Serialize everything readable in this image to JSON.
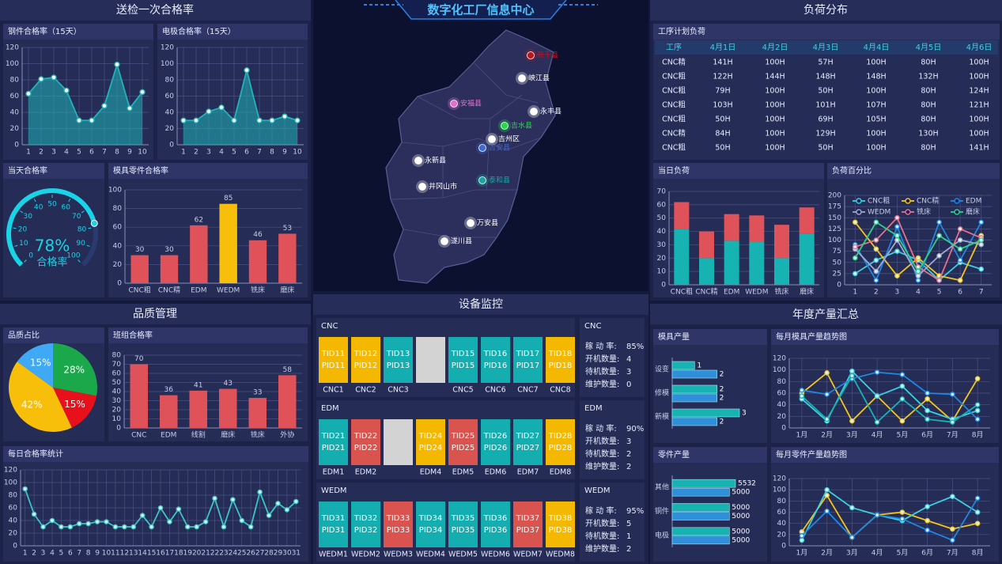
{
  "header": {
    "title": "数字化工厂信息中心"
  },
  "sections": [
    "送检一次合格率",
    "品质管理",
    "设备监控",
    "负荷分布",
    "年度产量汇总"
  ],
  "chart_data": [
    {
      "type": "line",
      "title": "钢件合格率（15天）",
      "categories": [
        "1",
        "2",
        "3",
        "4",
        "5",
        "6",
        "7",
        "8",
        "9",
        "10"
      ],
      "series": [
        {
          "color": "#1fb5b8",
          "values": [
            63,
            81,
            83,
            67,
            30,
            30,
            48,
            99,
            45,
            65
          ]
        }
      ],
      "area": true,
      "ylim": [
        0,
        120
      ],
      "yticks": [
        0,
        20,
        40,
        60,
        80,
        100,
        120
      ],
      "grid": true
    },
    {
      "type": "line",
      "title": "电极合格率（15天）",
      "categories": [
        "1",
        "2",
        "3",
        "4",
        "5",
        "6",
        "7",
        "8",
        "9",
        "10"
      ],
      "series": [
        {
          "color": "#1fb5b8",
          "values": [
            30,
            30,
            41,
            46,
            30,
            92,
            30,
            30,
            35,
            30
          ]
        }
      ],
      "area": true,
      "ylim": [
        0,
        120
      ],
      "yticks": [
        0,
        20,
        40,
        60,
        80,
        100,
        120
      ],
      "grid": true
    },
    {
      "type": "gauge",
      "title": "当天合格率",
      "values": [
        78
      ],
      "value_labels": [
        "78%"
      ],
      "label": "合格率",
      "color": "#19d3e6",
      "ylim": [
        0,
        100
      ],
      "yticks": [
        0,
        10,
        20,
        30,
        40,
        50,
        60,
        70,
        80,
        90,
        100
      ]
    },
    {
      "type": "bar",
      "title": "模具零件合格率",
      "categories": [
        "CNC粗",
        "CNC精",
        "EDM",
        "WEDM",
        "铣床",
        "磨床"
      ],
      "series": [
        {
          "color": "#e0525a",
          "colors": [
            "#e0525a",
            "#e0525a",
            "#e0525a",
            "#f7bf0a",
            "#e0525a",
            "#e0525a"
          ],
          "values": [
            30,
            30,
            62,
            85,
            46,
            53
          ]
        }
      ],
      "ylim": [
        0,
        100
      ],
      "yticks": [
        0,
        20,
        40,
        60,
        80,
        100
      ],
      "grid": true,
      "data_labels": true
    },
    {
      "type": "pie",
      "title": "品质占比",
      "values": [
        28,
        15,
        42,
        15
      ],
      "value_labels": [
        "28%",
        "15%",
        "42%",
        "15%"
      ],
      "colors": [
        "#1aa84b",
        "#e8101a",
        "#f7bf0a",
        "#3fa9f5"
      ]
    },
    {
      "type": "bar",
      "title": "班组合格率",
      "categories": [
        "CNC",
        "EDM",
        "线割",
        "磨床",
        "铣床",
        "外协"
      ],
      "series": [
        {
          "color": "#e0525a",
          "values": [
            70,
            36,
            41,
            43,
            33,
            58
          ]
        }
      ],
      "ylim": [
        0,
        80
      ],
      "yticks": [
        0,
        10,
        20,
        30,
        40,
        50,
        60,
        70,
        80
      ],
      "grid": true,
      "data_labels": true
    },
    {
      "type": "line",
      "title": "每日合格率统计",
      "categories": [
        "1",
        "2",
        "3",
        "4",
        "5",
        "6",
        "7",
        "8",
        "9",
        "10",
        "11",
        "12",
        "13",
        "14",
        "15",
        "16",
        "17",
        "18",
        "19",
        "20",
        "21",
        "22",
        "23",
        "24",
        "25",
        "26",
        "27",
        "28",
        "29",
        "30",
        "31"
      ],
      "series": [
        {
          "color": "#3bc6c6",
          "values": [
            90,
            50,
            30,
            40,
            30,
            30,
            35,
            35,
            38,
            38,
            30,
            30,
            30,
            48,
            30,
            60,
            38,
            58,
            30,
            30,
            38,
            75,
            30,
            73,
            40,
            30,
            85,
            48,
            67,
            57,
            70
          ]
        }
      ],
      "area": false,
      "ylim": [
        0,
        120
      ],
      "yticks": [
        0,
        20,
        40,
        60,
        80,
        100,
        120
      ],
      "grid": true
    },
    {
      "type": "bar",
      "title": "当日负荷",
      "stacked": true,
      "categories": [
        "CNC粗",
        "CNC精",
        "EDM",
        "WEDM",
        "铣床",
        "磨床"
      ],
      "series": [
        {
          "color": "#17b3b3",
          "values": [
            42,
            20,
            33,
            32,
            20,
            38
          ]
        },
        {
          "color": "#e0525a",
          "values": [
            20,
            20,
            20,
            20,
            25,
            20
          ]
        }
      ],
      "ylim": [
        0,
        70
      ],
      "yticks": [
        0,
        10,
        20,
        30,
        40,
        50,
        60,
        70
      ],
      "grid": true
    },
    {
      "type": "line",
      "title": "负荷百分比",
      "legend": true,
      "categories": [
        "1",
        "2",
        "3",
        "4",
        "5",
        "6",
        "7"
      ],
      "series": [
        {
          "name": "CNC粗",
          "color": "#3ad1e0",
          "values": [
            25,
            55,
            75,
            55,
            10,
            50,
            35
          ]
        },
        {
          "name": "CNC精",
          "color": "#f5c518",
          "values": [
            140,
            80,
            20,
            60,
            20,
            10,
            110
          ]
        },
        {
          "name": "EDM",
          "color": "#1e88e5",
          "values": [
            90,
            10,
            130,
            10,
            140,
            55,
            140
          ]
        },
        {
          "name": "WEDM",
          "color": "#a0a8d0",
          "values": [
            80,
            30,
            100,
            20,
            65,
            100,
            90
          ]
        },
        {
          "name": "铣床",
          "color": "#e8708a",
          "values": [
            85,
            100,
            150,
            40,
            10,
            125,
            105
          ]
        },
        {
          "name": "磨床",
          "color": "#2ed18a",
          "values": [
            60,
            140,
            110,
            30,
            110,
            80,
            100
          ]
        }
      ],
      "area": false,
      "ylim": [
        0,
        200
      ],
      "yticks": [
        0,
        25,
        50,
        75,
        100,
        125,
        150,
        175,
        200
      ],
      "grid": true
    },
    {
      "type": "hbar",
      "title": "模具产量",
      "categories": [
        "设变",
        "修模",
        "新模"
      ],
      "series": [
        {
          "color": "#17b3b3",
          "values": [
            1,
            2,
            3
          ]
        },
        {
          "color": "#2f8fd8",
          "values": [
            2,
            2,
            2
          ]
        }
      ],
      "data_labels": true
    },
    {
      "type": "line",
      "title": "每月模具产量趋势图",
      "categories": [
        "1月",
        "2月",
        "3月",
        "4月",
        "5月",
        "6月",
        "7月",
        "8月"
      ],
      "series": [
        {
          "color": "#f5c518",
          "values": [
            60,
            95,
            12,
            55,
            12,
            50,
            12,
            85
          ]
        },
        {
          "color": "#3ad1e0",
          "values": [
            50,
            12,
            98,
            55,
            72,
            30,
            15,
            30
          ]
        },
        {
          "color": "#1e88e5",
          "values": [
            65,
            58,
            85,
            96,
            92,
            60,
            58,
            15
          ]
        },
        {
          "color": "#17b3b3",
          "values": [
            55,
            15,
            90,
            10,
            50,
            15,
            10,
            40
          ]
        }
      ],
      "area": false,
      "ylim": [
        0,
        120
      ],
      "yticks": [
        0,
        20,
        40,
        60,
        80,
        100,
        120
      ],
      "grid": true
    },
    {
      "type": "hbar",
      "title": "零件产量",
      "categories": [
        "其他",
        "铜件",
        "电极"
      ],
      "series": [
        {
          "color": "#17b3b3",
          "values": [
            5532,
            5000,
            5000
          ]
        },
        {
          "color": "#2f8fd8",
          "values": [
            5000,
            5000,
            5000
          ]
        }
      ],
      "data_labels": true
    },
    {
      "type": "line",
      "title": "每月零件产量趋势图",
      "categories": [
        "1月",
        "2月",
        "3月",
        "4月",
        "5月",
        "6月",
        "7月",
        "8月"
      ],
      "series": [
        {
          "color": "#f5c518",
          "values": [
            25,
            90,
            15,
            55,
            60,
            45,
            30,
            40
          ]
        },
        {
          "color": "#3ad1e0",
          "values": [
            10,
            100,
            68,
            55,
            45,
            70,
            88,
            60
          ]
        },
        {
          "color": "#1e88e5",
          "values": [
            18,
            62,
            15,
            55,
            48,
            28,
            10,
            85
          ]
        }
      ],
      "area": false,
      "ylim": [
        0,
        120
      ],
      "yticks": [
        0,
        20,
        40,
        60,
        80,
        100,
        120
      ],
      "grid": true
    }
  ],
  "map": {
    "places": [
      {
        "name": "新干县",
        "color": "#c0141e"
      },
      {
        "name": "峡江县",
        "color": "#ffffff"
      },
      {
        "name": "安福县",
        "color": "#e070d0"
      },
      {
        "name": "永丰县",
        "color": "#ffffff"
      },
      {
        "name": "吉水县",
        "color": "#22dd44"
      },
      {
        "name": "吉州区",
        "color": "#ffffff"
      },
      {
        "name": "吉安县",
        "color": "#3d6bd8"
      },
      {
        "name": "永新县",
        "color": "#ffffff"
      },
      {
        "name": "泰和县",
        "color": "#17a7a0"
      },
      {
        "name": "井冈山市",
        "color": "#ffffff"
      },
      {
        "name": "万安县",
        "color": "#ffffff"
      },
      {
        "name": "遂川县",
        "color": "#ffffff"
      }
    ]
  },
  "load_table": {
    "title": "工序计划负荷",
    "header": [
      "工序",
      "4月1日",
      "4月2日",
      "4月3日",
      "4月4日",
      "4月5日",
      "4月6日"
    ],
    "rows": [
      [
        "CNC精",
        "141H",
        "100H",
        "57H",
        "100H",
        "80H",
        "100H"
      ],
      [
        "CNC粗",
        "122H",
        "144H",
        "148H",
        "148H",
        "132H",
        "100H"
      ],
      [
        "CNC粗",
        "79H",
        "100H",
        "50H",
        "100H",
        "80H",
        "124H"
      ],
      [
        "CNC粗",
        "103H",
        "100H",
        "101H",
        "107H",
        "80H",
        "121H"
      ],
      [
        "CNC粗",
        "50H",
        "100H",
        "69H",
        "105H",
        "80H",
        "100H"
      ],
      [
        "CNC精",
        "84H",
        "100H",
        "129H",
        "100H",
        "130H",
        "100H"
      ],
      [
        "CNC粗",
        "50H",
        "100H",
        "50H",
        "100H",
        "80H",
        "141H"
      ]
    ]
  },
  "equipment": [
    {
      "title": "CNC",
      "machines": [
        {
          "name": "CNC1",
          "tid": "TID11",
          "pid": "PID11",
          "color": "#f5b800"
        },
        {
          "name": "CNC2",
          "tid": "TID12",
          "pid": "PID12",
          "color": "#f5b800"
        },
        {
          "name": "CNC3",
          "tid": "TID13",
          "pid": "PID13",
          "color": "#15aeb0"
        },
        {
          "name": null,
          "tid": null,
          "pid": null,
          "color": "#d3d3d3"
        },
        {
          "name": "CNC5",
          "tid": "TID15",
          "pid": "PID15",
          "color": "#15aeb0"
        },
        {
          "name": "CNC6",
          "tid": "TID16",
          "pid": "PID16",
          "color": "#15aeb0"
        },
        {
          "name": "CNC7",
          "tid": "TID17",
          "pid": "PID17",
          "color": "#15aeb0"
        },
        {
          "name": "CNC8",
          "tid": "TID18",
          "pid": "PID18",
          "color": "#f5b800"
        }
      ],
      "stats": [
        [
          "稼 动 率:",
          "85%"
        ],
        [
          "开机数量:",
          "4"
        ],
        [
          "待机数量:",
          "3"
        ],
        [
          "维护数量:",
          "0"
        ]
      ]
    },
    {
      "title": "EDM",
      "machines": [
        {
          "name": "EDM1",
          "tid": "TID21",
          "pid": "PID21",
          "color": "#15aeb0"
        },
        {
          "name": "EDM2",
          "tid": "TID22",
          "pid": "PID22",
          "color": "#d9534f"
        },
        {
          "name": null,
          "tid": null,
          "pid": null,
          "color": "#d3d3d3"
        },
        {
          "name": "EDM4",
          "tid": "TID24",
          "pid": "PID24",
          "color": "#f5b800"
        },
        {
          "name": "EDM5",
          "tid": "TID25",
          "pid": "PID25",
          "color": "#d9534f"
        },
        {
          "name": "EDM6",
          "tid": "TID26",
          "pid": "PID26",
          "color": "#15aeb0"
        },
        {
          "name": "EDM7",
          "tid": "TID27",
          "pid": "PID27",
          "color": "#15aeb0"
        },
        {
          "name": "EDM8",
          "tid": "TID28",
          "pid": "PID28",
          "color": "#f5b800"
        }
      ],
      "stats": [
        [
          "稼 动 率:",
          "90%"
        ],
        [
          "开机数量:",
          "3"
        ],
        [
          "待机数量:",
          "2"
        ],
        [
          "维护数量:",
          "2"
        ]
      ]
    },
    {
      "title": "WEDM",
      "machines": [
        {
          "name": "WEDM1",
          "tid": "TID31",
          "pid": "PID31",
          "color": "#15aeb0"
        },
        {
          "name": "WEDM2",
          "tid": "TID32",
          "pid": "PID32",
          "color": "#15aeb0"
        },
        {
          "name": "WEDM3",
          "tid": "TID33",
          "pid": "PID33",
          "color": "#d9534f"
        },
        {
          "name": "WEDM4",
          "tid": "TID34",
          "pid": "PID34",
          "color": "#15aeb0"
        },
        {
          "name": "WEDM5",
          "tid": "TID35",
          "pid": "PID35",
          "color": "#15aeb0"
        },
        {
          "name": "WEDM6",
          "tid": "TID36",
          "pid": "PID36",
          "color": "#15aeb0"
        },
        {
          "name": "WEDM7",
          "tid": "TID37",
          "pid": "PID37",
          "color": "#d9534f"
        },
        {
          "name": "WEDM8",
          "tid": "TID38",
          "pid": "PID38",
          "color": "#f5b800"
        }
      ],
      "stats": [
        [
          "稼 动 率:",
          "95%"
        ],
        [
          "开机数量:",
          "5"
        ],
        [
          "待机数量:",
          "1"
        ],
        [
          "维护数量:",
          "2"
        ]
      ]
    }
  ]
}
